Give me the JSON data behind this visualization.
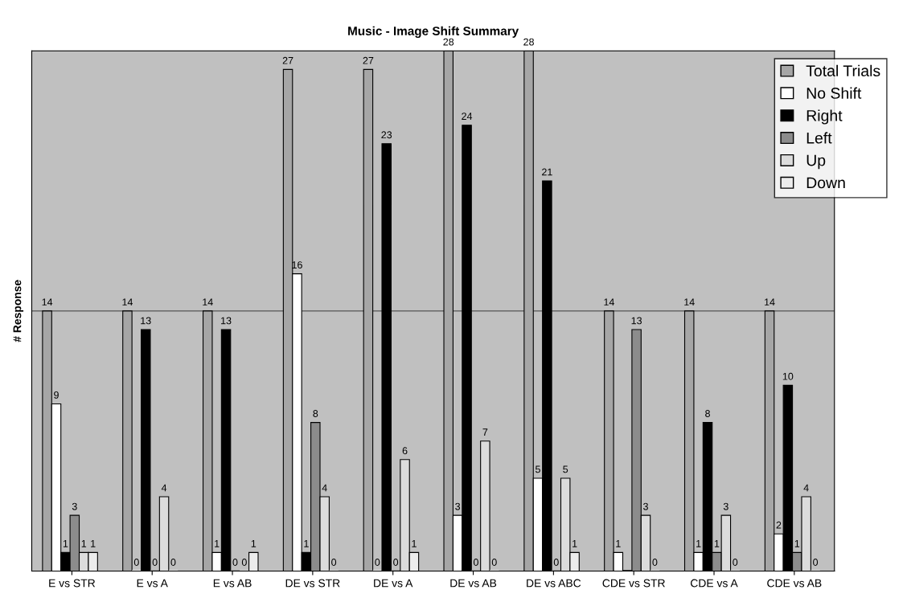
{
  "chart_data": {
    "type": "bar",
    "title": "Music - Image Shift Summary",
    "ylabel": "# Response",
    "categories": [
      "E vs STR",
      "E vs A",
      "E vs AB",
      "DE vs STR",
      "DE vs A",
      "DE vs AB",
      "DE vs ABC",
      "CDE vs STR",
      "CDE vs A",
      "CDE vs AB"
    ],
    "series": [
      {
        "name": "Total Trials",
        "color": "#a6a6a6",
        "values": [
          14,
          14,
          14,
          27,
          27,
          28,
          28,
          14,
          14,
          14
        ]
      },
      {
        "name": "No Shift",
        "color": "#ffffff",
        "values": [
          9,
          0,
          1,
          16,
          0,
          3,
          5,
          1,
          1,
          2
        ]
      },
      {
        "name": "Right",
        "color": "#000000",
        "values": [
          1,
          13,
          13,
          1,
          23,
          24,
          21,
          0,
          8,
          10
        ],
        "value_labels": [
          "1",
          "13",
          "13",
          "1",
          "23",
          "24",
          "21",
          null,
          "8",
          "10"
        ]
      },
      {
        "name": "Left",
        "color": "#8c8c8c",
        "values": [
          3,
          0,
          0,
          8,
          0,
          0,
          0,
          13,
          1,
          1
        ]
      },
      {
        "name": "Up",
        "color": "#dcdcdc",
        "values": [
          1,
          4,
          0,
          4,
          6,
          7,
          5,
          3,
          3,
          4
        ]
      },
      {
        "name": "Down",
        "color": "#ececec",
        "values": [
          1,
          0,
          1,
          0,
          1,
          0,
          1,
          0,
          0,
          0
        ]
      }
    ],
    "ylim": [
      0,
      28
    ],
    "yticks": [
      {
        "value": 0,
        "label": null
      },
      {
        "value": 14,
        "label": null
      },
      {
        "value": 28,
        "label": null
      }
    ],
    "grid": "y",
    "legend": "top right",
    "data_labels": true
  }
}
